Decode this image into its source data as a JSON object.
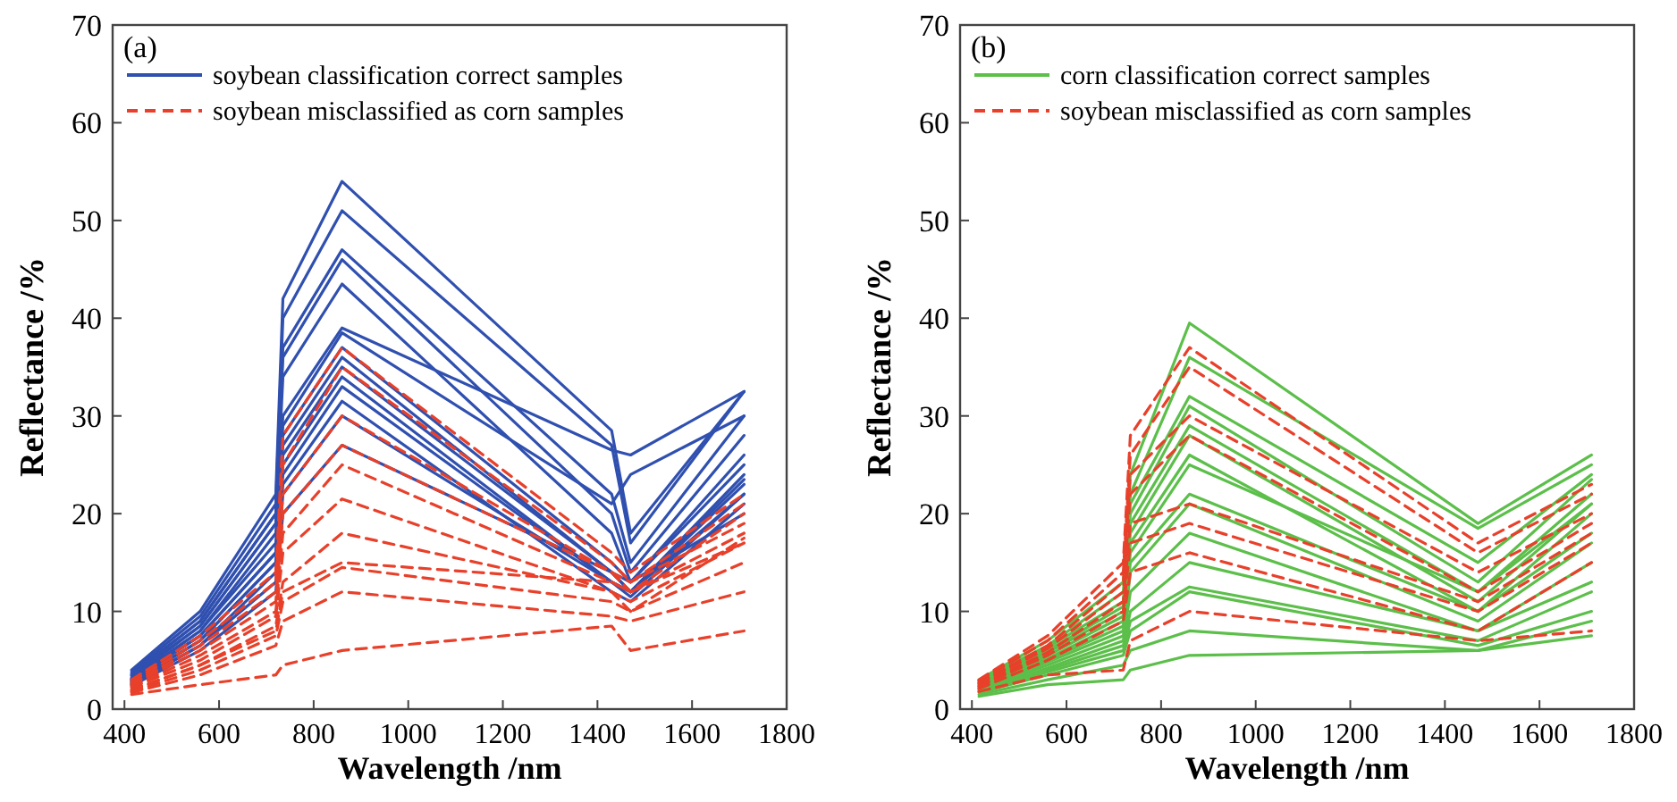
{
  "chart_data": [
    {
      "type": "line",
      "title": "(a)",
      "xlabel": "Wavelength /nm",
      "ylabel": "Reflectance /%",
      "xlim": [
        375,
        1800
      ],
      "ylim": [
        0,
        70
      ],
      "xticks": [
        400,
        600,
        800,
        1000,
        1200,
        1400,
        1600,
        1800
      ],
      "yticks": [
        0,
        10,
        20,
        30,
        40,
        50,
        60,
        70
      ],
      "legend": "top left",
      "grid": false,
      "x": [
        415,
        560,
        720,
        735,
        860,
        1430,
        1470,
        1710
      ],
      "series": [
        {
          "name": "soybean classification correct samples",
          "color": "#3050b0",
          "line_style": "solid",
          "values": [
            4,
            10,
            22,
            42,
            54,
            28.5,
            18,
            32.5
          ]
        },
        {
          "color": "#3050b0",
          "line_style": "solid",
          "values": [
            3.8,
            9.5,
            21,
            40,
            51,
            27,
            17,
            32.5
          ]
        },
        {
          "color": "#3050b0",
          "line_style": "solid",
          "values": [
            3.6,
            9,
            20,
            37,
            47,
            22,
            15,
            30
          ]
        },
        {
          "color": "#3050b0",
          "line_style": "solid",
          "values": [
            3.5,
            9,
            20,
            36,
            46,
            20,
            14,
            28
          ]
        },
        {
          "color": "#3050b0",
          "line_style": "solid",
          "values": [
            3.4,
            8.5,
            19,
            34,
            43.5,
            18,
            13,
            26
          ]
        },
        {
          "color": "#3050b0",
          "line_style": "solid",
          "values": [
            3.2,
            8.5,
            19,
            30,
            39,
            26.5,
            26,
            32.5
          ]
        },
        {
          "color": "#3050b0",
          "line_style": "solid",
          "values": [
            3.1,
            8,
            18,
            29,
            38.5,
            21,
            24,
            30
          ]
        },
        {
          "color": "#3050b0",
          "line_style": "solid",
          "values": [
            3,
            8,
            17,
            28,
            37,
            15,
            13,
            25
          ]
        },
        {
          "color": "#3050b0",
          "line_style": "solid",
          "values": [
            3,
            7.5,
            16,
            27,
            36,
            14,
            12,
            24
          ]
        },
        {
          "color": "#3050b0",
          "line_style": "solid",
          "values": [
            2.9,
            7.5,
            16,
            26,
            35,
            14,
            12,
            23.5
          ]
        },
        {
          "color": "#3050b0",
          "line_style": "solid",
          "values": [
            2.8,
            7,
            15,
            25,
            34,
            13,
            12,
            23
          ]
        },
        {
          "color": "#3050b0",
          "line_style": "solid",
          "values": [
            2.7,
            7,
            15,
            24,
            33,
            13,
            11.5,
            22
          ]
        },
        {
          "color": "#3050b0",
          "line_style": "solid",
          "values": [
            2.6,
            6.5,
            14,
            23,
            31.5,
            12,
            11,
            21
          ]
        },
        {
          "color": "#3050b0",
          "line_style": "solid",
          "values": [
            2.5,
            6.5,
            13,
            22,
            30,
            13,
            12,
            22
          ]
        },
        {
          "color": "#3050b0",
          "line_style": "solid",
          "values": [
            2.4,
            6,
            12,
            20,
            27,
            14,
            13,
            20
          ]
        },
        {
          "name": "soybean misclassified as corn samples",
          "color": "#e8402a",
          "line_style": "dashed",
          "values": [
            3,
            7.5,
            14,
            28,
            37,
            16,
            14,
            22
          ]
        },
        {
          "color": "#e8402a",
          "line_style": "dashed",
          "values": [
            2.8,
            7,
            13,
            25,
            35,
            15,
            13,
            21
          ]
        },
        {
          "color": "#e8402a",
          "line_style": "dashed",
          "values": [
            2.6,
            6.5,
            12,
            22,
            30,
            14,
            12,
            20
          ]
        },
        {
          "color": "#e8402a",
          "line_style": "dashed",
          "values": [
            2.5,
            6,
            11,
            20,
            27,
            14,
            13,
            19
          ]
        },
        {
          "color": "#e8402a",
          "line_style": "dashed",
          "values": [
            2.3,
            5.5,
            10,
            18,
            25,
            13,
            12,
            18
          ]
        },
        {
          "color": "#e8402a",
          "line_style": "dashed",
          "values": [
            2.2,
            5,
            9.5,
            16,
            21.5,
            12,
            11,
            17
          ]
        },
        {
          "color": "#e8402a",
          "line_style": "dashed",
          "values": [
            2,
            4.5,
            8.5,
            13,
            18,
            12,
            10,
            17.5
          ]
        },
        {
          "color": "#e8402a",
          "line_style": "dashed",
          "values": [
            1.9,
            4.5,
            8,
            12,
            15,
            13,
            12,
            17
          ]
        },
        {
          "color": "#e8402a",
          "line_style": "dashed",
          "values": [
            1.8,
            4,
            7.5,
            11,
            14.5,
            11,
            10,
            15
          ]
        },
        {
          "color": "#e8402a",
          "line_style": "dashed",
          "values": [
            1.7,
            3.5,
            6.5,
            9,
            12,
            9.5,
            9,
            12
          ]
        },
        {
          "color": "#e8402a",
          "line_style": "dashed",
          "values": [
            1.5,
            2.5,
            3.5,
            4.5,
            6,
            8.5,
            6,
            8
          ]
        }
      ]
    },
    {
      "type": "line",
      "title": "(b)",
      "xlabel": "Wavelength /nm",
      "ylabel": "Reflectance /%",
      "xlim": [
        375,
        1800
      ],
      "ylim": [
        0,
        70
      ],
      "xticks": [
        400,
        600,
        800,
        1000,
        1200,
        1400,
        1600,
        1800
      ],
      "yticks": [
        0,
        10,
        20,
        30,
        40,
        50,
        60,
        70
      ],
      "legend": "top left",
      "grid": false,
      "x": [
        415,
        560,
        720,
        735,
        860,
        1470,
        1710
      ],
      "series": [
        {
          "name": "corn classification correct samples",
          "color": "#5cbf4a",
          "line_style": "solid",
          "values": [
            3,
            7,
            13,
            24,
            39.5,
            19,
            26
          ]
        },
        {
          "color": "#5cbf4a",
          "line_style": "solid",
          "values": [
            2.9,
            6.5,
            12,
            22,
            36,
            18.5,
            25
          ]
        },
        {
          "color": "#5cbf4a",
          "line_style": "solid",
          "values": [
            2.8,
            6.3,
            11,
            21,
            32,
            15,
            24
          ]
        },
        {
          "color": "#5cbf4a",
          "line_style": "solid",
          "values": [
            2.7,
            6,
            10.5,
            20,
            31,
            13,
            23.5
          ]
        },
        {
          "color": "#5cbf4a",
          "line_style": "solid",
          "values": [
            2.6,
            5.8,
            10,
            19,
            29,
            12,
            22
          ]
        },
        {
          "color": "#5cbf4a",
          "line_style": "solid",
          "values": [
            2.5,
            5.5,
            9.5,
            18,
            28,
            11,
            21
          ]
        },
        {
          "color": "#5cbf4a",
          "line_style": "solid",
          "values": [
            2.4,
            5.2,
            9,
            17,
            26,
            10,
            20
          ]
        },
        {
          "color": "#5cbf4a",
          "line_style": "solid",
          "values": [
            2.3,
            5,
            8.5,
            16,
            25,
            12,
            21
          ]
        },
        {
          "color": "#5cbf4a",
          "line_style": "solid",
          "values": [
            2.2,
            4.8,
            8,
            15,
            22,
            10,
            18
          ]
        },
        {
          "color": "#5cbf4a",
          "line_style": "solid",
          "values": [
            2.1,
            4.5,
            7.5,
            14,
            21,
            9,
            17
          ]
        },
        {
          "color": "#5cbf4a",
          "line_style": "solid",
          "values": [
            2,
            4.2,
            7,
            12,
            18,
            8,
            15
          ]
        },
        {
          "color": "#5cbf4a",
          "line_style": "solid",
          "values": [
            1.9,
            4,
            6.5,
            10,
            15,
            8,
            13
          ]
        },
        {
          "color": "#5cbf4a",
          "line_style": "solid",
          "values": [
            1.8,
            3.8,
            6,
            9,
            12.5,
            7,
            12
          ]
        },
        {
          "color": "#5cbf4a",
          "line_style": "solid",
          "values": [
            1.7,
            3.5,
            5.5,
            8,
            12,
            6.5,
            10
          ]
        },
        {
          "color": "#5cbf4a",
          "line_style": "solid",
          "values": [
            1.5,
            3,
            4.5,
            6,
            8,
            6,
            9
          ]
        },
        {
          "color": "#5cbf4a",
          "line_style": "solid",
          "values": [
            1.3,
            2.5,
            3,
            4,
            5.5,
            6,
            7.5
          ]
        },
        {
          "name": "soybean misclassified as corn samples",
          "color": "#e8402a",
          "line_style": "dashed",
          "values": [
            3,
            7.5,
            15,
            28,
            37,
            17,
            23
          ]
        },
        {
          "color": "#e8402a",
          "line_style": "dashed",
          "values": [
            2.9,
            7,
            14,
            26,
            35,
            16,
            22
          ]
        },
        {
          "color": "#e8402a",
          "line_style": "dashed",
          "values": [
            2.7,
            6.5,
            13,
            24,
            30,
            14,
            20
          ]
        },
        {
          "color": "#e8402a",
          "line_style": "dashed",
          "values": [
            2.6,
            6.2,
            12,
            22,
            28,
            12,
            19
          ]
        },
        {
          "color": "#e8402a",
          "line_style": "dashed",
          "values": [
            2.4,
            5.8,
            11,
            19,
            21,
            11,
            18
          ]
        },
        {
          "color": "#e8402a",
          "line_style": "dashed",
          "values": [
            2.3,
            5.5,
            10,
            17,
            19,
            10,
            17
          ]
        },
        {
          "color": "#e8402a",
          "line_style": "dashed",
          "values": [
            2.1,
            5,
            9,
            14,
            16,
            8,
            15
          ]
        },
        {
          "color": "#e8402a",
          "line_style": "dashed",
          "values": [
            1.8,
            3.5,
            4,
            7,
            10,
            7,
            8
          ]
        }
      ]
    }
  ]
}
